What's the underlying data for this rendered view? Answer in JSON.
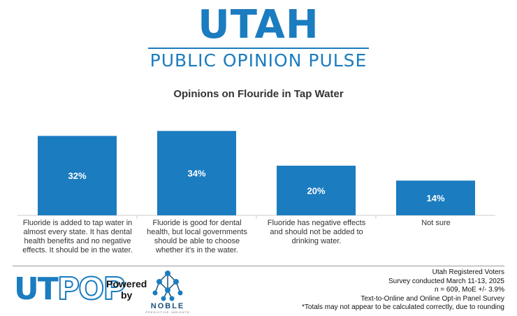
{
  "header": {
    "title": "UTAH",
    "subtitle": "PUBLIC OPINION PULSE"
  },
  "chart_data": {
    "type": "bar",
    "title": "Opinions on Flouride in Tap Water",
    "categories": [
      "Fluoride is added to tap water in almost every state. It has dental health benefits and no negative effects. It should be in the water.",
      "Fluoride is good for dental health, but local governments should be able to choose whether it’s in the water.",
      "Fluoride has negative effects and should not be added to drinking water.",
      "Not sure"
    ],
    "values": [
      32,
      34,
      20,
      14
    ],
    "data_labels": [
      "32%",
      "34%",
      "20%",
      "14%"
    ],
    "unit": "%",
    "ylim": [
      0,
      40
    ],
    "grid": false,
    "bar_color": "#1b7cc0",
    "label_color": "#ffffff"
  },
  "footer": {
    "logo_ut": "UT",
    "logo_pop": "POP",
    "powered_by": "Powered",
    "by": "by",
    "partner_name": "NOBLE",
    "partner_tagline": "PREDICTIVE INSIGHTS",
    "notes": [
      "Utah Registered Voters",
      "Survey conducted March 11-13, 2025",
      "n = 609, MoE +/- 3.9%",
      "Text-to-Online and Online Opt-in Panel Survey",
      "*Totals may not appear to be calculated correctly, due to rounding"
    ]
  },
  "colors": {
    "brand_blue": "#1b7cc0",
    "axis": "#cccccc",
    "partner_blue": "#1b4f7a"
  }
}
